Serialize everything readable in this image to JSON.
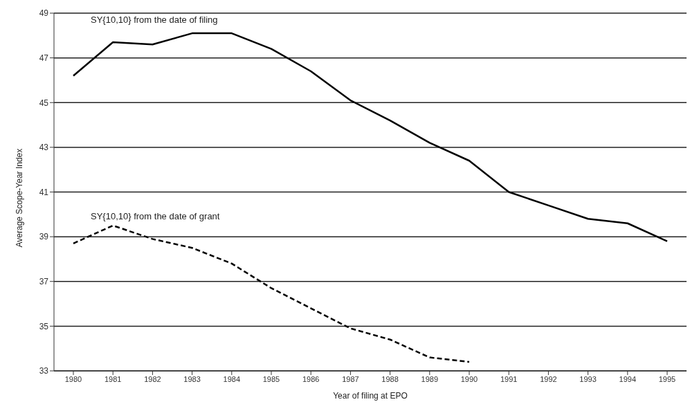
{
  "chart_data": {
    "type": "line",
    "xlabel": "Year of filing at EPO",
    "ylabel": "Average Scope-Year Index",
    "categories": [
      "1980",
      "1981",
      "1982",
      "1983",
      "1984",
      "1985",
      "1986",
      "1987",
      "1988",
      "1989",
      "1990",
      "1991",
      "1992",
      "1993",
      "1994",
      "1995"
    ],
    "series": [
      {
        "name": "SY{10,10} from the date of filing",
        "color": "#000000",
        "line_style": "solid",
        "values": [
          46.2,
          47.7,
          47.6,
          48.1,
          48.1,
          47.4,
          46.4,
          45.1,
          44.2,
          43.2,
          42.4,
          41.0,
          40.4,
          39.8,
          39.6,
          38.8
        ]
      },
      {
        "name": "SY{10,10} from the date of grant",
        "color": "#000000",
        "line_style": "dashed",
        "values": [
          38.7,
          39.5,
          38.9,
          38.5,
          37.8,
          36.7,
          35.8,
          34.9,
          34.4,
          33.6,
          33.4,
          null,
          null,
          null,
          null,
          null
        ]
      }
    ],
    "ylim": [
      33,
      49
    ],
    "yticks": [
      33,
      35,
      37,
      39,
      41,
      43,
      45,
      47,
      49
    ],
    "grid": "y",
    "marker": "none",
    "legend": false
  }
}
